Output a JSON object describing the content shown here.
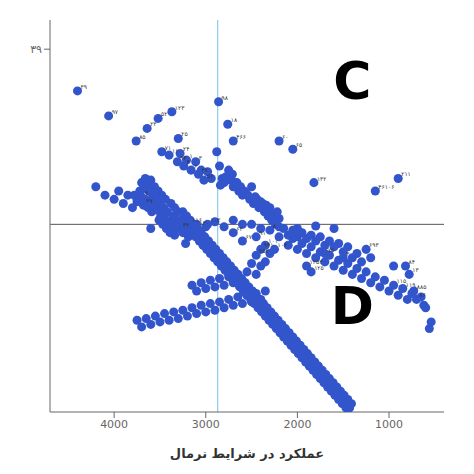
{
  "chart_data": {
    "type": "scatter",
    "xlabel": "عملکرد در شرایط نرمال",
    "xlim": [
      4700,
      400
    ],
    "ylim": [
      -5,
      42
    ],
    "xticks": [
      4000,
      3000,
      2000,
      1000
    ],
    "yticks": [
      {
        "value": 38.5,
        "label": "۳۹"
      }
    ],
    "grid": false,
    "reference_lines": [
      {
        "axis": "y",
        "value": 17.5,
        "color": "#555555"
      },
      {
        "axis": "x",
        "value": 2870,
        "color": "#88ccee"
      }
    ],
    "annotations": [
      {
        "text": "C",
        "x": 1400,
        "y": 37
      },
      {
        "text": "D",
        "x": 1400,
        "y": 10
      }
    ],
    "series": [
      {
        "color": "#3355cc",
        "x": [
          4400,
          4060,
          3760,
          3640,
          3520,
          3370,
          3300,
          3480,
          3400,
          3310,
          3280,
          3240,
          3210,
          3160,
          3110,
          3080,
          3050,
          3020,
          2980,
          2940,
          2880,
          2860,
          2850,
          2840,
          2820,
          2800,
          2780,
          2760,
          2750,
          2730,
          2710,
          2700,
          2700,
          2680,
          2660,
          2640,
          2620,
          2600,
          2580,
          2560,
          2540,
          2520,
          2500,
          2480,
          2460,
          2440,
          2420,
          2400,
          2380,
          2360,
          2340,
          2320,
          2300,
          2280,
          2260,
          2240,
          2220,
          2200,
          2200,
          2050,
          1820,
          1150,
          900,
          3780,
          3750,
          3720,
          3700,
          3680,
          3660,
          3630,
          3610,
          3590,
          3570,
          3550,
          3530,
          3510,
          3490,
          3470,
          3450,
          3430,
          3410,
          3390,
          3370,
          3340,
          3310,
          3280,
          3250,
          3220,
          3190,
          3180,
          3100,
          3100,
          3000,
          2980,
          2900,
          2800,
          2700,
          2600,
          2500,
          2400,
          2200,
          2000,
          1800,
          1600,
          3600,
          3500,
          3400,
          2700,
          2600,
          2450,
          2400,
          2450,
          2350,
          2300,
          2250,
          2200,
          2100,
          2050,
          2000,
          1950,
          1900,
          1850,
          1800,
          1750,
          1700,
          1700,
          1650,
          1600,
          1550,
          1500,
          1500,
          1450,
          1400,
          1350,
          1300,
          1250,
          1200,
          1150,
          1100,
          1050,
          1000,
          950,
          950,
          900,
          850,
          820,
          800,
          780,
          750,
          730,
          700,
          650,
          620,
          600,
          560,
          540,
          1850,
          1900,
          2300,
          2350,
          2400,
          2450,
          2500,
          2550,
          2600,
          2650,
          2700,
          2750,
          2800,
          2850,
          2900,
          2950,
          3000,
          3050,
          3100,
          3150,
          2350,
          2400,
          2450,
          2500,
          2550,
          2600,
          2650,
          2700,
          2750,
          2800,
          2850,
          2900,
          2950,
          3000,
          3050,
          3100,
          3150,
          3200,
          3250,
          3300,
          3350,
          3400,
          3450,
          3500,
          3550,
          3600,
          3650,
          3700,
          3750,
          1250,
          1200,
          1300,
          1350,
          1400,
          1450,
          1500,
          1550,
          1600,
          1650,
          1700,
          1750,
          1800,
          1850,
          1900,
          1950,
          2000,
          2050,
          2100,
          2150,
          4200,
          4100,
          4000,
          3950,
          3900,
          3850,
          3800,
          3750,
          3700,
          3680,
          3660,
          3640,
          3620,
          3600,
          3580,
          3560,
          3540,
          3520,
          3500,
          3480,
          3460,
          3440,
          3420,
          3380,
          3360,
          3340,
          3320,
          3300,
          3270,
          3250,
          3230,
          3210,
          3190,
          3170,
          3150,
          3130,
          3110,
          3090,
          3070,
          3050,
          3030,
          3010,
          2990,
          2970,
          2950,
          2930,
          2910,
          2890,
          2870,
          2850,
          2830,
          2810,
          2790,
          2770,
          2750,
          2730,
          2710,
          2690,
          2670,
          2650,
          2630,
          2610,
          2590,
          2570,
          2550,
          2530,
          2510,
          2490,
          2470,
          2450,
          2430,
          2410,
          2390,
          2370,
          2350,
          2330,
          2310,
          2290,
          2270,
          2250,
          2230,
          2210,
          2190,
          2170,
          2150,
          2130,
          2110,
          2090,
          2070,
          2050,
          2030,
          2010,
          1990,
          1970,
          1950,
          1930,
          1910,
          1890,
          1870,
          1850,
          1830,
          1810,
          1790,
          1770,
          1750,
          1730,
          1710,
          1690,
          1670,
          1650,
          1630,
          1610,
          1590,
          1570,
          1550,
          1530,
          1510,
          1490,
          1470,
          1450,
          1430,
          1410
        ],
        "values": [
          33.5,
          30.5,
          27.5,
          29.0,
          30.2,
          31.0,
          27.8,
          26.2,
          25.8,
          25.0,
          26.0,
          24.5,
          25.2,
          24.0,
          25.0,
          23.5,
          24.0,
          22.8,
          23.8,
          23.0,
          26.2,
          32.2,
          24.5,
          22.2,
          23.0,
          22.5,
          23.2,
          29.5,
          24.0,
          22.8,
          23.5,
          27.5,
          22.0,
          22.5,
          22.5,
          21.5,
          22.0,
          21.0,
          21.5,
          21.2,
          21.0,
          20.5,
          22.0,
          20.0,
          20.8,
          20.5,
          19.5,
          20.2,
          20.0,
          19.0,
          19.8,
          18.5,
          19.5,
          18.0,
          18.8,
          17.5,
          19.0,
          18.2,
          27.5,
          26.5,
          22.5,
          21.5,
          23.0,
          21.0,
          20.2,
          21.5,
          20.8,
          19.8,
          20.5,
          19.5,
          20.2,
          19.0,
          19.8,
          20.5,
          19.2,
          18.0,
          18.8,
          17.5,
          18.2,
          17.0,
          17.8,
          16.5,
          17.2,
          16.2,
          17.0,
          17.0,
          16.5,
          15.2,
          16.0,
          17.5,
          17.2,
          17.5,
          17.2,
          17.5,
          17.8,
          17.2,
          18.0,
          17.5,
          17.5,
          17.0,
          17.2,
          17.0,
          17.3,
          17.0,
          17.0,
          18.2,
          17.5,
          16.5,
          15.5,
          16.0,
          14.5,
          13.8,
          15.0,
          16.8,
          14.5,
          16.0,
          15.0,
          15.8,
          14.5,
          15.2,
          14.0,
          14.8,
          13.5,
          14.2,
          13.0,
          14.0,
          13.8,
          12.5,
          13.2,
          12.0,
          13.5,
          12.8,
          11.5,
          12.2,
          11.0,
          11.8,
          10.5,
          11.2,
          10.0,
          10.8,
          9.5,
          10.2,
          12.5,
          9.0,
          9.8,
          12.5,
          8.5,
          11.5,
          9.2,
          9.5,
          8.5,
          8.8,
          7.8,
          7.5,
          5.0,
          5.8,
          11.8,
          12.5,
          14.0,
          13.0,
          12.5,
          11.5,
          12.8,
          11.8,
          10.8,
          11.5,
          10.5,
          11.2,
          10.2,
          11.0,
          10.0,
          10.8,
          9.8,
          10.5,
          9.5,
          10.2,
          9.5,
          8.5,
          9.2,
          8.2,
          9.0,
          8.0,
          8.8,
          7.8,
          8.5,
          7.5,
          8.2,
          7.2,
          8.0,
          7.0,
          7.8,
          6.8,
          7.5,
          6.5,
          7.2,
          6.2,
          7.0,
          6.0,
          6.8,
          5.8,
          6.5,
          5.5,
          6.2,
          5.2,
          6.0,
          14.5,
          13.5,
          13.0,
          14.0,
          13.5,
          14.8,
          14.2,
          15.2,
          14.8,
          15.5,
          15.0,
          16.0,
          15.5,
          16.2,
          15.8,
          16.5,
          16.0,
          16.8,
          16.2,
          17.0,
          22.0,
          21.0,
          20.5,
          21.5,
          20.0,
          21.0,
          19.5,
          20.5,
          22.5,
          21.8,
          23.0,
          22.2,
          21.5,
          22.8,
          21.0,
          22.0,
          20.5,
          21.5,
          20.0,
          21.0,
          19.5,
          20.5,
          19.0,
          20.0,
          18.5,
          19.5,
          18.0,
          19.0,
          18.0,
          19.0,
          17.5,
          18.5,
          17.0,
          18.0,
          16.5,
          17.5,
          16.0,
          17.0,
          15.5,
          16.5,
          15.0,
          16.0,
          14.5,
          15.5,
          14.0,
          15.0,
          13.5,
          14.5,
          13.0,
          14.0,
          12.5,
          13.5,
          12.0,
          13.0,
          11.5,
          12.5,
          11.0,
          12.0,
          10.5,
          11.5,
          10.0,
          11.0,
          9.5,
          10.5,
          9.0,
          10.0,
          8.5,
          9.5,
          8.0,
          9.0,
          7.5,
          8.5,
          7.0,
          8.0,
          6.5,
          7.5,
          6.0,
          7.0,
          5.5,
          6.5,
          5.0,
          6.0,
          4.5,
          5.5,
          4.0,
          5.0,
          3.5,
          4.5,
          3.0,
          4.0,
          2.5,
          3.5,
          2.0,
          3.0,
          1.5,
          2.5,
          1.0,
          2.0,
          0.5,
          1.5,
          0.0,
          1.0,
          -0.5,
          0.5,
          -1.0,
          0.0,
          -1.5,
          -0.5,
          -2.0,
          -1.0,
          -2.5,
          -1.5,
          -3.0,
          -2.0,
          -3.5,
          -2.5,
          -4.0,
          -3.0,
          -4.5,
          -3.5,
          -4.5,
          -4.0
        ],
        "point_labels": [
          "۳۹",
          "۹۷",
          "۸۵",
          "۲۳",
          "۵۲",
          "۱۲۳",
          "۲۵",
          "۷۱",
          "۱۱",
          "۹۴",
          "۲۴",
          "۴",
          "۱",
          "۶",
          "۳",
          "۲۷",
          null,
          "۵۶",
          null,
          null,
          null,
          "۹۸",
          null,
          null,
          null,
          null,
          null,
          "۱۸",
          null,
          null,
          null,
          "۴۶۶",
          null,
          null,
          null,
          null,
          null,
          null,
          null,
          null,
          null,
          null,
          null,
          null,
          null,
          null,
          null,
          null,
          null,
          null,
          null,
          null,
          null,
          null,
          null,
          null,
          null,
          null,
          "۶۰",
          "۶۵",
          "۱۳۲",
          "۴۶۱۰۶",
          "۲۱۱",
          null,
          null,
          null,
          "۹",
          "۳۷",
          null,
          null,
          null,
          null,
          null,
          null,
          null,
          null,
          null,
          null,
          null,
          null,
          null,
          null,
          null,
          null,
          null,
          "۳۲",
          null,
          null,
          null,
          "۱۱۶",
          "۱۳۰",
          null,
          null,
          "۱۰۳",
          null,
          null,
          null,
          null,
          null,
          null,
          null,
          null,
          null,
          null,
          null,
          null,
          null,
          "۶۳",
          "۶۷",
          "۹۱",
          "۹۴۱",
          "۲۵۷",
          "۱۰۱",
          "۸",
          "۱۰۴",
          null,
          null,
          null,
          null,
          null,
          null,
          null,
          null,
          null,
          null,
          "۷۵",
          null,
          null,
          null,
          null,
          "۳",
          null,
          null,
          null,
          null,
          null,
          null,
          null,
          null,
          null,
          null,
          "۱۱۵",
          null,
          null,
          "۱۱۹",
          "۸۴",
          null,
          "۱۳",
          null,
          "۸۸۵",
          "۸۶",
          null,
          null,
          null,
          null,
          null,
          "۱۲۵",
          "۱۲۵۳",
          null,
          null,
          null,
          null,
          null,
          null,
          null,
          null,
          null,
          null,
          null,
          null,
          null,
          null,
          null,
          null,
          null,
          null,
          null,
          null,
          null,
          null,
          null,
          null,
          null,
          null,
          null,
          null,
          null,
          null,
          null,
          null,
          null,
          null,
          null,
          null,
          null,
          null,
          null,
          null,
          null,
          null,
          null,
          null,
          null,
          null,
          null,
          "۶۹۳",
          null,
          null,
          null,
          null,
          null,
          null,
          null,
          null,
          null,
          null,
          null,
          null,
          null,
          null,
          null,
          null,
          null,
          null,
          null,
          null,
          null,
          null,
          null,
          null,
          null,
          null,
          null,
          null,
          null,
          null,
          null,
          null,
          null,
          null,
          null,
          null,
          null,
          null,
          null,
          null,
          null,
          null,
          null,
          null,
          null,
          null,
          null,
          null,
          null,
          null,
          null,
          null,
          null,
          null,
          null,
          null,
          null,
          null,
          null,
          null,
          null,
          null,
          null,
          null,
          null,
          null,
          null,
          null,
          null,
          null,
          null,
          null,
          null,
          null,
          null,
          null,
          null,
          null,
          null,
          null,
          null,
          null,
          null,
          null,
          null,
          null,
          null,
          null,
          null,
          null,
          null,
          null,
          null,
          null,
          null,
          null,
          null,
          null,
          null,
          null,
          null,
          null,
          null,
          null,
          null,
          null,
          null,
          null,
          null,
          null,
          null,
          null,
          null,
          null,
          null,
          null,
          null,
          null,
          null,
          null,
          null,
          null,
          null,
          null,
          null,
          null,
          null,
          null,
          null,
          null,
          null,
          null,
          null,
          null,
          null,
          null,
          null,
          null,
          null,
          null,
          null,
          null,
          null,
          null,
          null,
          null,
          null,
          null,
          null,
          null,
          null
        ]
      }
    ]
  }
}
